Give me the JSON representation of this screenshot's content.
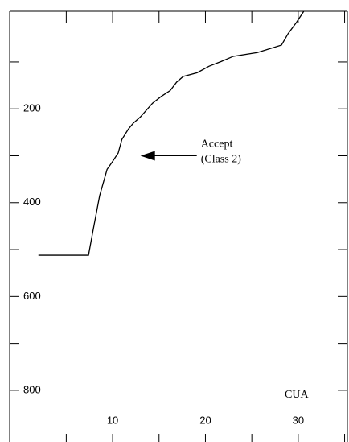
{
  "chart_data": {
    "type": "line",
    "x_label": "CUA",
    "annotation": [
      "Accept",
      "(Class 2)"
    ],
    "annotation_point": [
      13.0,
      300
    ],
    "xlim": [
      -1.1,
      35.3
    ],
    "ylim": [
      -8,
      910
    ],
    "y_inverted": true,
    "xticks": [
      10,
      20,
      30
    ],
    "xminor_ticks": [
      5,
      15,
      25,
      35
    ],
    "yticks": [
      200,
      400,
      600,
      800
    ],
    "yminor_ticks": [
      100,
      300,
      500,
      700
    ],
    "series": [
      {
        "color": "#000000",
        "x": [
          2.0,
          7.4,
          7.9,
          8.6,
          9.4,
          10.0,
          10.6,
          11.0,
          11.7,
          12.2,
          13.0,
          14.3,
          15.2,
          16.2,
          16.9,
          17.6,
          19.1,
          20.4,
          21.7,
          23.0,
          25.6,
          28.2,
          28.9,
          29.8,
          30.6
        ],
        "values": [
          512,
          512,
          458,
          385,
          329,
          312,
          294,
          265,
          243,
          231,
          217,
          188,
          174,
          161,
          143,
          131,
          123,
          109,
          99,
          88,
          80,
          64,
          40,
          16,
          -8
        ]
      }
    ]
  }
}
